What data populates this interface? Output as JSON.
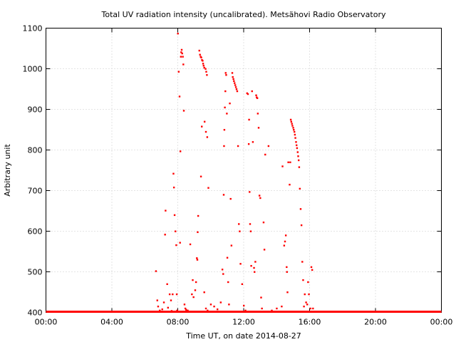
{
  "chart_data": {
    "type": "scatter",
    "title": "Total UV radiation intensity (uncalibrated). Metsähovi Radio Observatory",
    "xlabel": "Time UT, on date 2014-08-27",
    "ylabel": "Arbitrary unit",
    "xlim": [
      0,
      24
    ],
    "ylim": [
      400,
      1100
    ],
    "x_ticks": [
      0,
      4,
      8,
      12,
      16,
      20,
      24
    ],
    "x_tick_labels": [
      "00:00",
      "04:00",
      "08:00",
      "12:00",
      "16:00",
      "20:00",
      "00:00"
    ],
    "y_ticks": [
      400,
      500,
      600,
      700,
      800,
      900,
      1000,
      1100
    ],
    "y_tick_labels": [
      "400",
      "500",
      "600",
      "700",
      "800",
      "900",
      "1000",
      "1100"
    ],
    "grid": true,
    "color": "#ff0000",
    "baseline": {
      "x_start": 0,
      "x_end": 24,
      "y": 400
    },
    "points": [
      [
        6.67,
        502
      ],
      [
        6.75,
        430
      ],
      [
        6.8,
        415
      ],
      [
        6.9,
        405
      ],
      [
        7.05,
        408
      ],
      [
        7.15,
        425
      ],
      [
        7.22,
        592
      ],
      [
        7.25,
        651
      ],
      [
        7.35,
        470
      ],
      [
        7.4,
        412
      ],
      [
        7.5,
        445
      ],
      [
        7.58,
        430
      ],
      [
        7.62,
        404
      ],
      [
        7.68,
        445
      ],
      [
        7.73,
        742
      ],
      [
        7.76,
        708
      ],
      [
        7.8,
        640
      ],
      [
        7.85,
        600
      ],
      [
        7.9,
        566
      ],
      [
        7.93,
        445
      ],
      [
        7.95,
        405
      ],
      [
        8.0,
        1087
      ],
      [
        8.05,
        993
      ],
      [
        8.1,
        932
      ],
      [
        8.13,
        572
      ],
      [
        8.15,
        797
      ],
      [
        8.18,
        1030
      ],
      [
        8.2,
        1041
      ],
      [
        8.23,
        1047
      ],
      [
        8.26,
        1038
      ],
      [
        8.3,
        1030
      ],
      [
        8.33,
        1011
      ],
      [
        8.36,
        897
      ],
      [
        8.4,
        420
      ],
      [
        8.45,
        410
      ],
      [
        8.5,
        407
      ],
      [
        8.6,
        405
      ],
      [
        8.75,
        568
      ],
      [
        8.85,
        445
      ],
      [
        8.9,
        480
      ],
      [
        8.95,
        438
      ],
      [
        9.05,
        455
      ],
      [
        9.1,
        475
      ],
      [
        9.15,
        534
      ],
      [
        9.18,
        530
      ],
      [
        9.2,
        598
      ],
      [
        9.23,
        638
      ],
      [
        9.3,
        1045
      ],
      [
        9.34,
        1035
      ],
      [
        9.38,
        1030
      ],
      [
        9.42,
        1028
      ],
      [
        9.46,
        1022
      ],
      [
        9.5,
        1020
      ],
      [
        9.53,
        1013
      ],
      [
        9.56,
        1008
      ],
      [
        9.6,
        1003
      ],
      [
        9.68,
        1000
      ],
      [
        9.72,
        993
      ],
      [
        9.76,
        985
      ],
      [
        9.4,
        735
      ],
      [
        9.45,
        858
      ],
      [
        9.62,
        870
      ],
      [
        9.7,
        845
      ],
      [
        9.78,
        832
      ],
      [
        9.85,
        707
      ],
      [
        9.6,
        450
      ],
      [
        9.7,
        410
      ],
      [
        9.8,
        405
      ],
      [
        10.0,
        420
      ],
      [
        10.2,
        415
      ],
      [
        10.4,
        408
      ],
      [
        10.6,
        425
      ],
      [
        10.7,
        506
      ],
      [
        10.75,
        495
      ],
      [
        10.78,
        690
      ],
      [
        10.8,
        810
      ],
      [
        10.82,
        850
      ],
      [
        10.85,
        905
      ],
      [
        10.88,
        945
      ],
      [
        10.9,
        990
      ],
      [
        10.93,
        985
      ],
      [
        10.97,
        890
      ],
      [
        11.0,
        535
      ],
      [
        11.05,
        475
      ],
      [
        11.1,
        420
      ],
      [
        11.15,
        915
      ],
      [
        11.2,
        680
      ],
      [
        11.25,
        565
      ],
      [
        11.3,
        990
      ],
      [
        11.33,
        980
      ],
      [
        11.37,
        975
      ],
      [
        11.4,
        970
      ],
      [
        11.44,
        965
      ],
      [
        11.48,
        960
      ],
      [
        11.52,
        955
      ],
      [
        11.56,
        950
      ],
      [
        11.6,
        945
      ],
      [
        11.65,
        810
      ],
      [
        11.7,
        618
      ],
      [
        11.75,
        600
      ],
      [
        11.8,
        520
      ],
      [
        11.9,
        470
      ],
      [
        12.0,
        417
      ],
      [
        12.1,
        405
      ],
      [
        12.2,
        940
      ],
      [
        12.25,
        938
      ],
      [
        12.3,
        815
      ],
      [
        12.32,
        875
      ],
      [
        12.35,
        697
      ],
      [
        12.38,
        618
      ],
      [
        12.42,
        600
      ],
      [
        12.45,
        515
      ],
      [
        12.5,
        945
      ],
      [
        12.55,
        820
      ],
      [
        12.62,
        510
      ],
      [
        12.65,
        500
      ],
      [
        12.7,
        525
      ],
      [
        12.75,
        935
      ],
      [
        12.78,
        930
      ],
      [
        12.82,
        928
      ],
      [
        12.85,
        890
      ],
      [
        12.9,
        855
      ],
      [
        12.95,
        688
      ],
      [
        13.0,
        682
      ],
      [
        13.05,
        437
      ],
      [
        13.1,
        410
      ],
      [
        13.2,
        622
      ],
      [
        13.25,
        555
      ],
      [
        13.3,
        789
      ],
      [
        13.5,
        810
      ],
      [
        13.7,
        405
      ],
      [
        14.0,
        410
      ],
      [
        14.3,
        415
      ],
      [
        14.35,
        760
      ],
      [
        14.45,
        565
      ],
      [
        14.5,
        575
      ],
      [
        14.55,
        590
      ],
      [
        14.6,
        512
      ],
      [
        14.62,
        500
      ],
      [
        14.65,
        450
      ],
      [
        14.7,
        770
      ],
      [
        14.78,
        715
      ],
      [
        14.82,
        770
      ],
      [
        14.85,
        875
      ],
      [
        14.88,
        870
      ],
      [
        14.92,
        865
      ],
      [
        14.95,
        860
      ],
      [
        15.0,
        855
      ],
      [
        15.03,
        850
      ],
      [
        15.07,
        845
      ],
      [
        15.1,
        838
      ],
      [
        15.13,
        830
      ],
      [
        15.17,
        820
      ],
      [
        15.2,
        812
      ],
      [
        15.23,
        805
      ],
      [
        15.27,
        795
      ],
      [
        15.3,
        785
      ],
      [
        15.33,
        775
      ],
      [
        15.36,
        758
      ],
      [
        15.4,
        705
      ],
      [
        15.45,
        655
      ],
      [
        15.5,
        615
      ],
      [
        15.55,
        525
      ],
      [
        15.6,
        480
      ],
      [
        15.65,
        415
      ],
      [
        15.7,
        445
      ],
      [
        15.78,
        425
      ],
      [
        15.85,
        420
      ],
      [
        15.9,
        475
      ],
      [
        15.95,
        445
      ],
      [
        16.05,
        410
      ],
      [
        16.1,
        512
      ],
      [
        16.15,
        505
      ],
      [
        16.2,
        410
      ]
    ]
  }
}
